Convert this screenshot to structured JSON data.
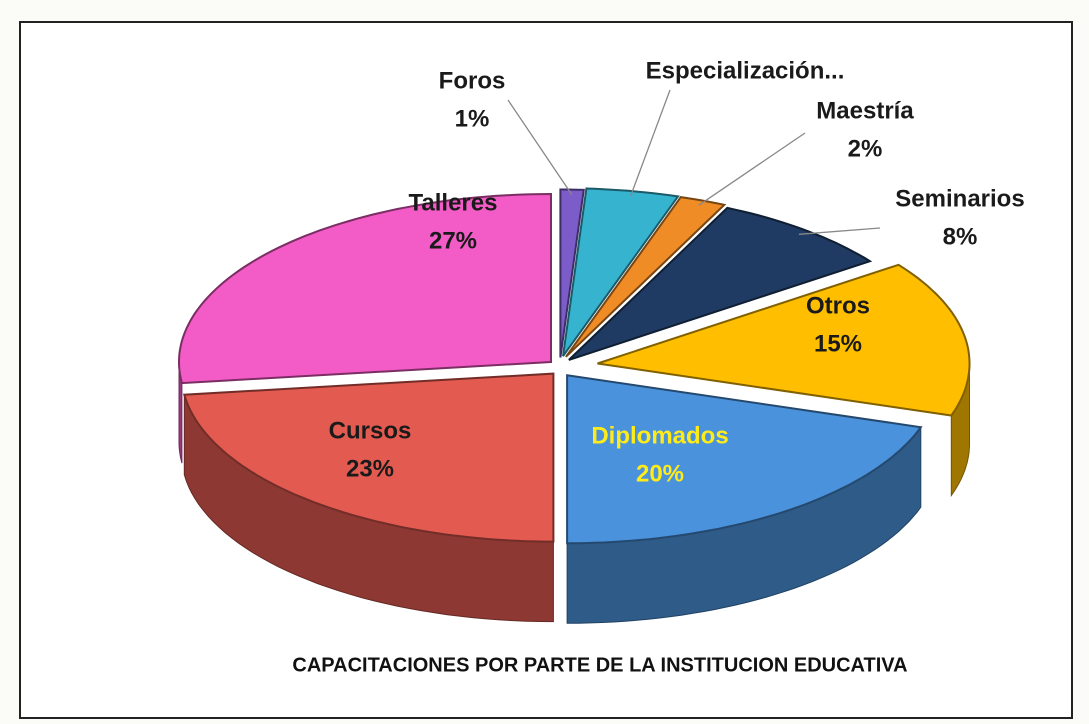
{
  "chart_data": {
    "type": "pie",
    "title": "CAPACITACIONES POR PARTE DE LA INSTITUCION EDUCATIVA",
    "categories": [
      "Foros",
      "Especialización...",
      "Maestría",
      "Seminarios",
      "Otros",
      "Diplomados",
      "Cursos",
      "Talleres"
    ],
    "values": [
      1,
      4,
      2,
      8,
      15,
      20,
      23,
      27
    ],
    "value_labels": [
      "1%",
      null,
      "2%",
      "8%",
      "15%",
      "20%",
      "23%",
      "27%"
    ],
    "colors": [
      "#7b5cc9",
      "#36b3cf",
      "#f08c26",
      "#1f3b63",
      "#ffbf00",
      "#4a92dc",
      "#e35a50",
      "#f35cc6"
    ],
    "legend": false
  }
}
